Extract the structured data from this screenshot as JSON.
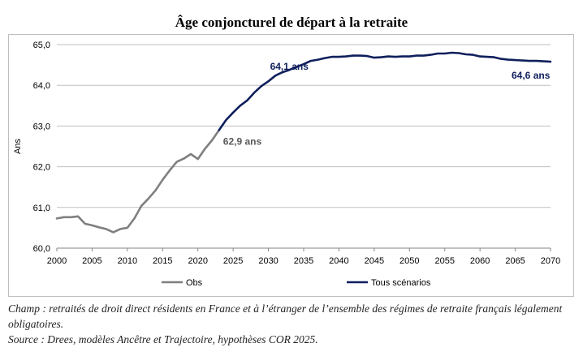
{
  "page": {
    "title": "Âge conjoncturel de départ à la retraite",
    "champ": "Champ : retraités de droit direct résidents en France et à l’étranger de l’ensemble des régimes de retraite français légalement obligatoires.",
    "source": "Source : Drees, modèles Ancêtre et Trajectoire, hypothèses COR 2025."
  },
  "chart_data": {
    "type": "line",
    "title": "Âge conjoncturel de départ à la retraite",
    "xlabel": "",
    "ylabel": "Ans",
    "xlim": [
      2000,
      2070
    ],
    "ylim": [
      60.0,
      65.0
    ],
    "x_ticks": [
      2000,
      2005,
      2010,
      2015,
      2020,
      2025,
      2030,
      2035,
      2040,
      2045,
      2050,
      2055,
      2060,
      2065,
      2070
    ],
    "y_ticks": [
      "60,0",
      "61,0",
      "62,0",
      "63,0",
      "64,0",
      "65,0"
    ],
    "y_tick_values": [
      60,
      61,
      62,
      63,
      64,
      65
    ],
    "grid": "horizontal",
    "legend_position": "bottom",
    "series": [
      {
        "name": "Obs",
        "color": "#7f7f7f",
        "points": [
          [
            2000,
            60.73
          ],
          [
            2001,
            60.76
          ],
          [
            2002,
            60.76
          ],
          [
            2003,
            60.78
          ],
          [
            2004,
            60.6
          ],
          [
            2005,
            60.56
          ],
          [
            2006,
            60.51
          ],
          [
            2007,
            60.47
          ],
          [
            2008,
            60.39
          ],
          [
            2009,
            60.47
          ],
          [
            2010,
            60.5
          ],
          [
            2011,
            60.73
          ],
          [
            2012,
            61.04
          ],
          [
            2013,
            61.22
          ],
          [
            2014,
            61.42
          ],
          [
            2015,
            61.68
          ],
          [
            2016,
            61.91
          ],
          [
            2017,
            62.12
          ],
          [
            2018,
            62.2
          ],
          [
            2019,
            62.31
          ],
          [
            2020,
            62.19
          ],
          [
            2021,
            62.44
          ],
          [
            2022,
            62.65
          ],
          [
            2023,
            62.9
          ]
        ]
      },
      {
        "name": "Tous scénarios",
        "color": "#0f1f5c",
        "points": [
          [
            2023,
            62.9
          ],
          [
            2024,
            63.15
          ],
          [
            2025,
            63.33
          ],
          [
            2026,
            63.5
          ],
          [
            2027,
            63.63
          ],
          [
            2028,
            63.82
          ],
          [
            2029,
            63.98
          ],
          [
            2030,
            64.1
          ],
          [
            2031,
            64.24
          ],
          [
            2032,
            64.32
          ],
          [
            2033,
            64.38
          ],
          [
            2034,
            64.45
          ],
          [
            2035,
            64.52
          ],
          [
            2036,
            64.6
          ],
          [
            2037,
            64.63
          ],
          [
            2038,
            64.67
          ],
          [
            2039,
            64.7
          ],
          [
            2040,
            64.7
          ],
          [
            2041,
            64.71
          ],
          [
            2042,
            64.73
          ],
          [
            2043,
            64.73
          ],
          [
            2044,
            64.72
          ],
          [
            2045,
            64.68
          ],
          [
            2046,
            64.69
          ],
          [
            2047,
            64.71
          ],
          [
            2048,
            64.7
          ],
          [
            2049,
            64.71
          ],
          [
            2050,
            64.71
          ],
          [
            2051,
            64.73
          ],
          [
            2052,
            64.73
          ],
          [
            2053,
            64.75
          ],
          [
            2054,
            64.78
          ],
          [
            2055,
            64.78
          ],
          [
            2056,
            64.8
          ],
          [
            2057,
            64.79
          ],
          [
            2058,
            64.76
          ],
          [
            2059,
            64.75
          ],
          [
            2060,
            64.71
          ],
          [
            2061,
            64.7
          ],
          [
            2062,
            64.69
          ],
          [
            2063,
            64.65
          ],
          [
            2064,
            64.63
          ],
          [
            2065,
            64.62
          ],
          [
            2066,
            64.61
          ],
          [
            2067,
            64.6
          ],
          [
            2068,
            64.6
          ],
          [
            2069,
            64.59
          ],
          [
            2070,
            64.58
          ]
        ]
      }
    ],
    "annotations": [
      {
        "text": "62,9 ans",
        "x": 2023,
        "y": 62.9,
        "color": "#595959"
      },
      {
        "text": "64,1 ans",
        "x": 2030,
        "y": 64.1,
        "color": "#0f1f5c"
      },
      {
        "text": "64,6 ans",
        "x": 2070,
        "y": 64.58,
        "color": "#0f1f5c"
      }
    ]
  }
}
